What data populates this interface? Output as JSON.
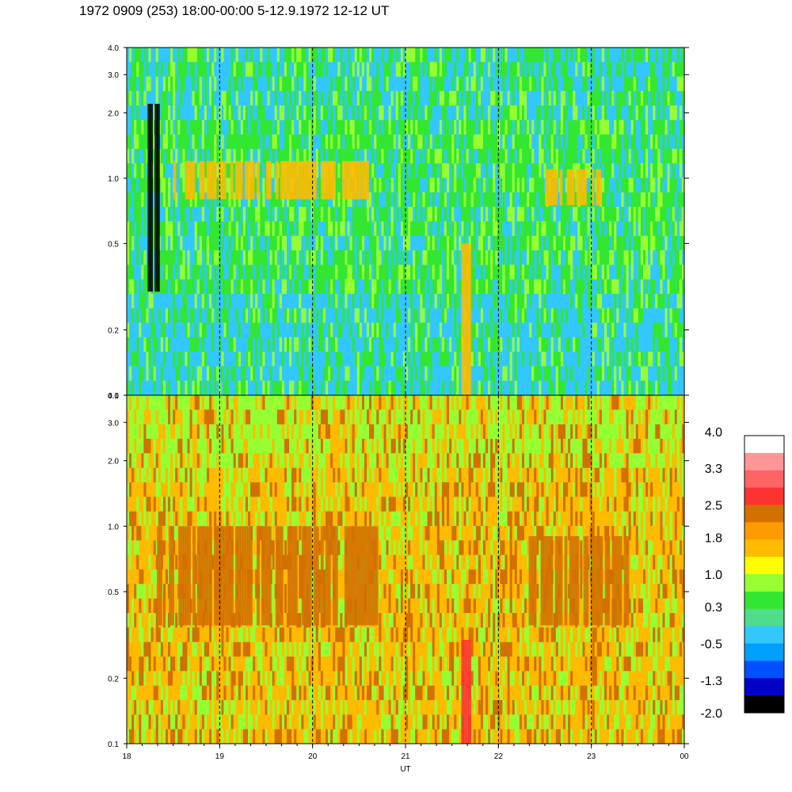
{
  "title": "1972 0909 (253) 18:00-00:00 5-12.9.1972  12-12 UT",
  "chart_data": {
    "type": "heatmap",
    "title": "1972 0909 (253) 18:00-00:00 5-12.9.1972  12-12 UT",
    "xlabel": "UT",
    "x_ticks": [
      "18",
      "19",
      "20",
      "21",
      "22",
      "23",
      "00"
    ],
    "x_tick_values": [
      18,
      19,
      20,
      21,
      22,
      23,
      24
    ],
    "xlim": [
      18,
      24
    ],
    "y_scale": "log",
    "ylim": [
      0.1,
      4.0
    ],
    "panels": [
      {
        "name": "top",
        "y_ticks": [
          "4.0",
          "3.0",
          "2.0",
          "1.0",
          "0.5",
          "0.2",
          "0.1"
        ],
        "y_tick_values": [
          4.0,
          3.0,
          2.0,
          1.0,
          0.5,
          0.2,
          0.1
        ],
        "dominant_levels": [
          0.3,
          -0.5,
          1.0
        ],
        "features": [
          {
            "x_range": [
              18.2,
              18.35
            ],
            "y_range": [
              0.3,
              2.2
            ],
            "level": -1.8
          },
          {
            "x_range": [
              18.5,
              20.6
            ],
            "y_range": [
              0.8,
              1.2
            ],
            "level": 1.8
          },
          {
            "x_range": [
              21.6,
              21.7
            ],
            "y_range": [
              0.1,
              0.5
            ],
            "level": 1.8
          },
          {
            "x_range": [
              22.5,
              23.1
            ],
            "y_range": [
              0.75,
              1.1
            ],
            "level": 1.8
          }
        ]
      },
      {
        "name": "bottom",
        "y_ticks": [
          "4.0",
          "3.0",
          "2.0",
          "1.0",
          "0.5",
          "0.2",
          "0.1"
        ],
        "y_tick_values": [
          4.0,
          3.0,
          2.0,
          1.0,
          0.5,
          0.2,
          0.1
        ],
        "dominant_levels": [
          1.8,
          1.0,
          2.5
        ],
        "features": [
          {
            "x_range": [
              18.3,
              20.7
            ],
            "y_range": [
              0.35,
              1.0
            ],
            "level": 2.5
          },
          {
            "x_range": [
              22.3,
              23.4
            ],
            "y_range": [
              0.35,
              0.9
            ],
            "level": 2.5
          },
          {
            "x_range": [
              21.6,
              21.7
            ],
            "y_range": [
              0.1,
              0.3
            ],
            "level": 2.8
          }
        ]
      }
    ],
    "colorbar": {
      "labels": [
        "4.0",
        "3.3",
        "2.5",
        "1.8",
        "1.0",
        "0.3",
        "-0.5",
        "-1.3",
        "-2.0"
      ],
      "label_values": [
        4.0,
        3.3,
        2.5,
        1.8,
        1.0,
        0.3,
        -0.5,
        -1.3,
        -2.0
      ],
      "colors": [
        "#ffffff",
        "#ff9696",
        "#ff6464",
        "#ff3232",
        "#d27000",
        "#ff9a00",
        "#ffbb00",
        "#ffff00",
        "#96ff32",
        "#32e632",
        "#50dc8c",
        "#32c8ff",
        "#00a0ff",
        "#0050ff",
        "#0000c8",
        "#000000"
      ]
    }
  }
}
